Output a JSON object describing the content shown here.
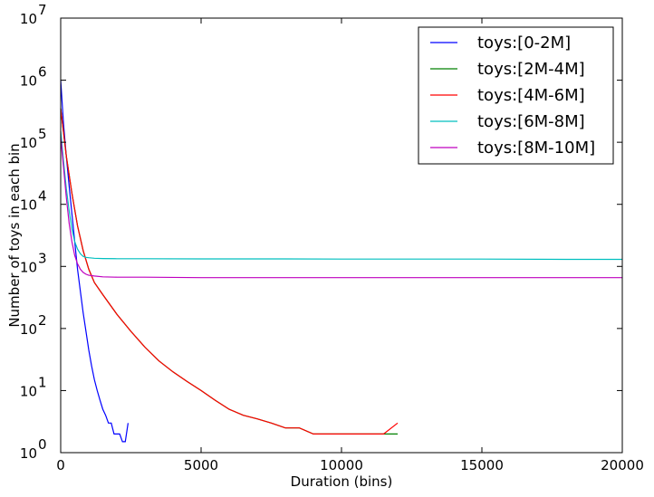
{
  "chart_data": {
    "type": "line",
    "title": "",
    "xlabel": "Duration (bins)",
    "ylabel": "Number of toys in each bin",
    "xlim": [
      0,
      20000
    ],
    "ylim": [
      1,
      10000000
    ],
    "yscale": "log",
    "grid": false,
    "legend_position": "top-right",
    "x_ticks": [
      0,
      5000,
      10000,
      15000,
      20000
    ],
    "x_tick_labels": [
      "0",
      "5000",
      "10000",
      "15000",
      "20000"
    ],
    "y_ticks": [
      1,
      10,
      100,
      1000,
      10000,
      100000,
      1000000,
      10000000
    ],
    "y_tick_labels": [
      {
        "base": "10",
        "exp": "0"
      },
      {
        "base": "10",
        "exp": "1"
      },
      {
        "base": "10",
        "exp": "2"
      },
      {
        "base": "10",
        "exp": "3"
      },
      {
        "base": "10",
        "exp": "4"
      },
      {
        "base": "10",
        "exp": "5"
      },
      {
        "base": "10",
        "exp": "6"
      },
      {
        "base": "10",
        "exp": "7"
      }
    ],
    "series": [
      {
        "name": "toys:[0-2M]",
        "color": "#0000ff",
        "x": [
          0,
          100,
          200,
          300,
          400,
          500,
          600,
          700,
          800,
          900,
          1000,
          1100,
          1200,
          1300,
          1400,
          1500,
          1600,
          1700,
          1800,
          1900,
          2000,
          2100,
          2200,
          2300,
          2400
        ],
        "y": [
          1000000,
          200000,
          60000,
          20000,
          7000,
          2500,
          900,
          400,
          180,
          90,
          45,
          25,
          15,
          10,
          7,
          5,
          4,
          3,
          3,
          2,
          2,
          2,
          1.5,
          1.5,
          3
        ]
      },
      {
        "name": "toys:[2M-4M]",
        "color": "#008000",
        "x": [
          0,
          200,
          400,
          600,
          800,
          1000,
          1200,
          1500,
          2000,
          2500,
          3000,
          3500,
          4000,
          4500,
          5000,
          5500,
          6000,
          6500,
          7000,
          7500,
          8000,
          8500,
          9000,
          9500,
          10000,
          10500,
          11000,
          11500,
          12000
        ],
        "y": [
          350000,
          60000,
          15000,
          4500,
          1800,
          900,
          550,
          350,
          170,
          90,
          50,
          30,
          20,
          14,
          10,
          7,
          5,
          4,
          3.5,
          3,
          2.5,
          2.5,
          2,
          2,
          2,
          2,
          2,
          2,
          2
        ]
      },
      {
        "name": "toys:[4M-6M]",
        "color": "#ff0000",
        "x": [
          0,
          200,
          400,
          600,
          800,
          1000,
          1200,
          1500,
          2000,
          2500,
          3000,
          3500,
          4000,
          4500,
          5000,
          5500,
          6000,
          6500,
          7000,
          7500,
          8000,
          8500,
          9000,
          9500,
          10000,
          10500,
          11000,
          11500,
          12000
        ],
        "y": [
          350000,
          60000,
          15000,
          4500,
          1800,
          900,
          550,
          350,
          170,
          90,
          50,
          30,
          20,
          14,
          10,
          7,
          5,
          4,
          3.5,
          3,
          2.5,
          2.5,
          2,
          2,
          2,
          2,
          2,
          2,
          3
        ]
      },
      {
        "name": "toys:[6M-8M]",
        "color": "#00bfbf",
        "x": [
          0,
          100,
          200,
          300,
          400,
          500,
          600,
          700,
          800,
          900,
          1000,
          1200,
          1500,
          2000,
          3000,
          5000,
          8000,
          10000,
          12000,
          15000,
          18000,
          20000
        ],
        "y": [
          150000,
          50000,
          18000,
          8000,
          4000,
          2500,
          1900,
          1600,
          1450,
          1400,
          1380,
          1350,
          1340,
          1330,
          1330,
          1320,
          1320,
          1310,
          1310,
          1310,
          1300,
          1300
        ]
      },
      {
        "name": "toys:[8M-10M]",
        "color": "#bf00bf",
        "x": [
          0,
          100,
          200,
          300,
          400,
          500,
          600,
          700,
          800,
          900,
          1000,
          1200,
          1500,
          2000,
          3000,
          5000,
          8000,
          10000,
          12000,
          15000,
          18000,
          20000
        ],
        "y": [
          120000,
          40000,
          13000,
          5000,
          2500,
          1500,
          1100,
          900,
          800,
          750,
          720,
          700,
          680,
          670,
          670,
          660,
          660,
          660,
          660,
          660,
          660,
          660
        ]
      }
    ]
  }
}
